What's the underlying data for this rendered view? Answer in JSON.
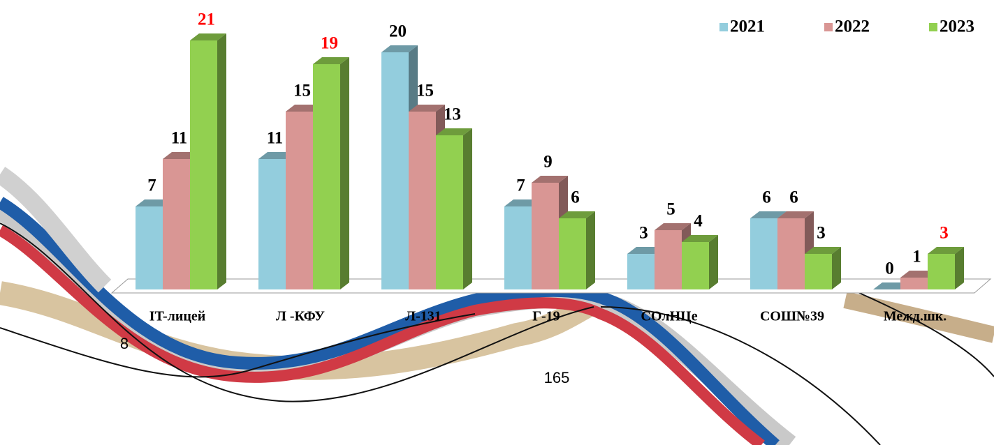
{
  "chart_data": {
    "type": "bar3d",
    "categories": [
      "IT-лицей",
      "Л -КФУ",
      "Л-131",
      "Г-19",
      "СОлНЦе",
      "СОШ№39",
      "Межд.шк."
    ],
    "series": [
      {
        "name": "2021",
        "color": "#93cddd",
        "values": [
          7,
          11,
          20,
          7,
          3,
          6,
          0
        ],
        "label_colors": [
          "#000000",
          "#000000",
          "#000000",
          "#000000",
          "#000000",
          "#000000",
          "#000000"
        ]
      },
      {
        "name": "2022",
        "color": "#d99694",
        "values": [
          11,
          15,
          15,
          9,
          5,
          6,
          1
        ],
        "label_colors": [
          "#000000",
          "#000000",
          "#000000",
          "#000000",
          "#000000",
          "#000000",
          "#000000"
        ]
      },
      {
        "name": "2023",
        "color": "#92d050",
        "values": [
          21,
          19,
          13,
          6,
          4,
          3,
          3
        ],
        "label_colors": [
          "#ff0000",
          "#ff0000",
          "#000000",
          "#000000",
          "#000000",
          "#000000",
          "#ff0000"
        ]
      }
    ],
    "legend": "top-right",
    "annotations": [
      "8",
      "165"
    ]
  }
}
